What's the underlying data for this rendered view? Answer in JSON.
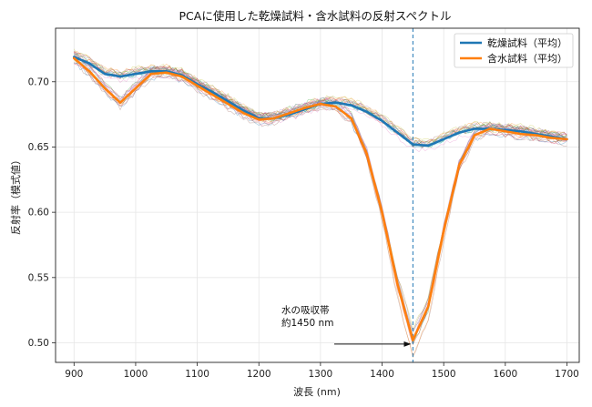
{
  "chart_data": {
    "type": "line",
    "title": "PCAに使用した乾燥試料・含水試料の反射スペクトル",
    "xlabel": "波長 (nm)",
    "ylabel": "反射率（模式値）",
    "xlim": [
      870,
      1720
    ],
    "ylim": [
      0.485,
      0.741
    ],
    "x_ticks": [
      900,
      1000,
      1100,
      1200,
      1300,
      1400,
      1500,
      1600,
      1700
    ],
    "y_ticks": [
      0.5,
      0.55,
      0.6,
      0.65,
      0.7
    ],
    "grid": true,
    "legend_position": "top-right",
    "vline": {
      "x": 1450,
      "color": "#1f77b4",
      "style": "dashed"
    },
    "annotation": {
      "lines": [
        "水の吸収帯",
        "約1450 nm"
      ],
      "x": 1450,
      "y": 0.499
    },
    "x": [
      900,
      925,
      950,
      975,
      1000,
      1025,
      1050,
      1075,
      1100,
      1125,
      1150,
      1175,
      1200,
      1225,
      1250,
      1275,
      1300,
      1325,
      1350,
      1375,
      1400,
      1425,
      1450,
      1475,
      1500,
      1525,
      1550,
      1575,
      1600,
      1625,
      1650,
      1675,
      1700
    ],
    "series": [
      {
        "name": "乾燥試料（平均）",
        "color": "#1f77b4",
        "values": [
          0.719,
          0.714,
          0.706,
          0.704,
          0.706,
          0.708,
          0.708,
          0.705,
          0.698,
          0.692,
          0.685,
          0.678,
          0.672,
          0.672,
          0.675,
          0.679,
          0.683,
          0.684,
          0.682,
          0.677,
          0.67,
          0.661,
          0.652,
          0.651,
          0.656,
          0.661,
          0.664,
          0.664,
          0.663,
          0.662,
          0.66,
          0.658,
          0.656
        ]
      },
      {
        "name": "含水試料（平均）",
        "color": "#ff7f0e",
        "values": [
          0.718,
          0.708,
          0.695,
          0.684,
          0.695,
          0.706,
          0.707,
          0.704,
          0.697,
          0.69,
          0.683,
          0.676,
          0.671,
          0.672,
          0.676,
          0.68,
          0.683,
          0.681,
          0.672,
          0.645,
          0.6,
          0.545,
          0.502,
          0.528,
          0.586,
          0.636,
          0.659,
          0.664,
          0.662,
          0.66,
          0.659,
          0.657,
          0.656
        ]
      }
    ]
  }
}
